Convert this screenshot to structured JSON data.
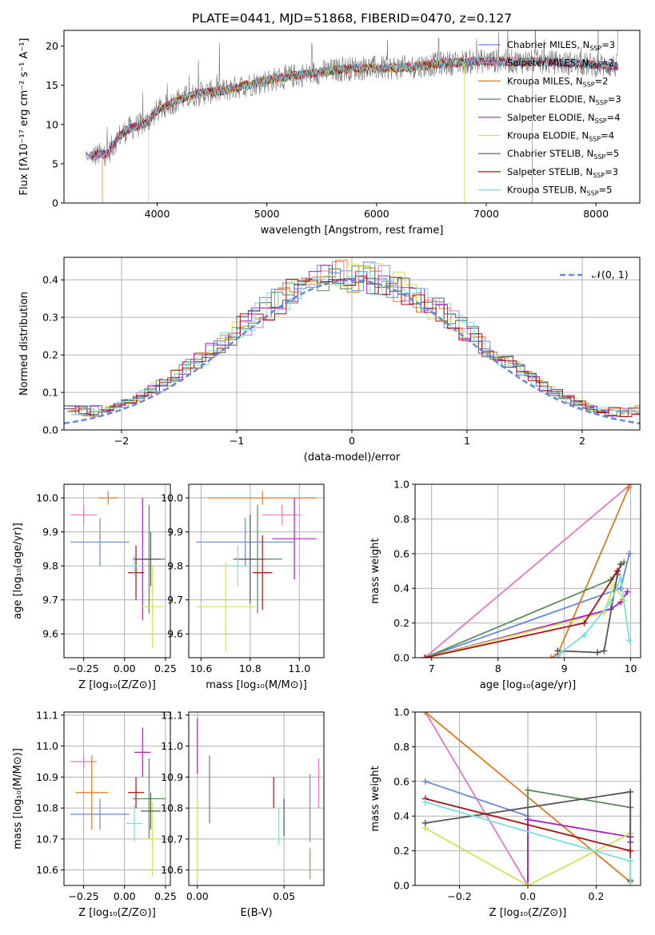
{
  "figure_title": "PLATE=0441, MJD=51868, FIBERID=0470, z=0.127",
  "colors": {
    "chabrier_miles": "#6688dd",
    "salpeter_miles": "#e377c2",
    "kroupa_miles": "#e07820",
    "chabrier_elodie": "#5a8a5a",
    "salpeter_elodie": "#aa22bb",
    "kroupa_elodie": "#d4e157",
    "chabrier_stelib": "#555555",
    "salpeter_stelib": "#aa1111",
    "kroupa_stelib": "#7ddde0",
    "normal_curve": "#6688dd",
    "observed_spectrum": "#777777"
  },
  "chart_data": [
    {
      "id": "spectrum",
      "type": "line",
      "xlabel": "wavelength [Angstrom, rest frame]",
      "ylabel": "Flux [fλ10⁻¹⁷ erg cm⁻² s⁻¹ A⁻¹]",
      "xlim": [
        3150,
        8400
      ],
      "ylim": [
        0,
        22
      ],
      "xticks": [
        "4000",
        "5000",
        "6000",
        "7000",
        "8000"
      ],
      "yticks": [
        "0",
        "5",
        "10",
        "15",
        "20"
      ],
      "grid": false,
      "legend_position": "right",
      "legend": [
        "Chabrier MILES, N_SSP=3",
        "Salpeter MILES, N_SSP=2",
        "Kroupa MILES, N_SSP=2",
        "Chabrier ELODIE, N_SSP=3",
        "Salpeter ELODIE, N_SSP=4",
        "Kroupa ELODIE, N_SSP=4",
        "Chabrier STELIB, N_SSP=5",
        "Salpeter STELIB, N_SSP=3",
        "Kroupa STELIB, N_SSP=5"
      ],
      "continuum_anchors": [
        [
          3400,
          6
        ],
        [
          3550,
          6.3
        ],
        [
          3650,
          8.5
        ],
        [
          3750,
          9.5
        ],
        [
          3900,
          10.2
        ],
        [
          4000,
          11.8
        ],
        [
          4200,
          13.2
        ],
        [
          4400,
          14.0
        ],
        [
          4600,
          14.3
        ],
        [
          4800,
          15.0
        ],
        [
          5000,
          15.6
        ],
        [
          5200,
          16.1
        ],
        [
          5500,
          16.7
        ],
        [
          5800,
          17.2
        ],
        [
          6000,
          17.2
        ],
        [
          6300,
          17.3
        ],
        [
          6600,
          17.8
        ],
        [
          7000,
          18.1
        ],
        [
          7500,
          18.0
        ],
        [
          8000,
          17.6
        ],
        [
          8200,
          17.4
        ]
      ],
      "model_ranges": [
        [
          3350,
          8200
        ],
        [
          3350,
          7400
        ],
        [
          3500,
          7420
        ],
        [
          3400,
          8200
        ],
        [
          3400,
          8200
        ],
        [
          3920,
          6800
        ],
        [
          3350,
          8200
        ],
        [
          3400,
          8200
        ],
        [
          3350,
          8200
        ]
      ]
    },
    {
      "id": "residuals",
      "type": "line",
      "xlabel": "(data-model)/error",
      "ylabel": "Normed distribution",
      "xlim": [
        -2.5,
        2.5
      ],
      "ylim": [
        0,
        0.46
      ],
      "xticks": [
        "−2",
        "−1",
        "0",
        "1",
        "2"
      ],
      "yticks": [
        "0.0",
        "0.1",
        "0.2",
        "0.3",
        "0.4"
      ],
      "grid": true,
      "legend_position": "top-right",
      "legend": [
        "𝒩(0, 1)"
      ],
      "normal_mu": 0,
      "normal_sigma": 1,
      "bin_width": 0.1
    },
    {
      "id": "age-vs-Z",
      "type": "scatter",
      "xlabel": "Z [log₁₀(Z/Z⊙)]",
      "ylabel": "age  [log₁₀(age/yr)]",
      "xlim": [
        -0.37,
        0.28
      ],
      "ylim": [
        9.53,
        10.04
      ],
      "xticks": [
        "−0.25",
        "0.00",
        "0.25"
      ],
      "yticks": [
        "9.6",
        "9.7",
        "9.8",
        "9.9",
        "10.0"
      ],
      "grid": true,
      "points": [
        {
          "x": -0.15,
          "xerr": 0.18,
          "y": 9.87,
          "yerr": 0.07
        },
        {
          "x": -0.25,
          "xerr": 0.08,
          "y": 9.95,
          "yerr": 0.03
        },
        {
          "x": -0.1,
          "xerr": 0.06,
          "y": 10.0,
          "yerr": 0.02
        },
        {
          "x": 0.15,
          "xerr": 0.1,
          "y": 9.82,
          "yerr": 0.16
        },
        {
          "x": 0.11,
          "xerr": 0.05,
          "y": 9.82,
          "yerr": 0.18
        },
        {
          "x": 0.17,
          "xerr": 0.07,
          "y": 9.68,
          "yerr": 0.12
        },
        {
          "x": 0.16,
          "xerr": 0.06,
          "y": 9.82,
          "yerr": 0.08
        },
        {
          "x": 0.07,
          "xerr": 0.05,
          "y": 9.78,
          "yerr": 0.08
        },
        {
          "x": 0.06,
          "xerr": 0.05,
          "y": 9.8,
          "yerr": 0.03
        }
      ]
    },
    {
      "id": "age-vs-mass",
      "type": "scatter",
      "xlabel": "mass [log₁₀(M/M⊙)]",
      "ylabel": "",
      "xlim": [
        10.55,
        11.1
      ],
      "ylim": [
        9.53,
        10.04
      ],
      "xticks": [
        "10.6",
        "10.8",
        "11.0"
      ],
      "yticks": [
        "9.6",
        "9.7",
        "9.8",
        "9.9",
        "10.0"
      ],
      "grid": true,
      "points": [
        {
          "x": 10.78,
          "xerr": 0.2,
          "y": 9.87,
          "yerr": 0.07
        },
        {
          "x": 10.93,
          "xerr": 0.08,
          "y": 9.95,
          "yerr": 0.03
        },
        {
          "x": 10.85,
          "xerr": 0.22,
          "y": 10.0,
          "yerr": 0.02
        },
        {
          "x": 10.83,
          "xerr": 0.1,
          "y": 9.82,
          "yerr": 0.16
        },
        {
          "x": 10.98,
          "xerr": 0.09,
          "y": 9.88,
          "yerr": 0.12
        },
        {
          "x": 10.7,
          "xerr": 0.12,
          "y": 9.68,
          "yerr": 0.13
        },
        {
          "x": 10.8,
          "xerr": 0.06,
          "y": 9.82,
          "yerr": 0.13
        },
        {
          "x": 10.85,
          "xerr": 0.04,
          "y": 9.78,
          "yerr": 0.11
        },
        {
          "x": 10.75,
          "xerr": 0.05,
          "y": 9.8,
          "yerr": 0.06
        }
      ]
    },
    {
      "id": "mass-weight-vs-age",
      "type": "line",
      "xlabel": "age  [log₁₀(age/yr)]",
      "ylabel": "mass weight",
      "xlim": [
        6.75,
        10.15
      ],
      "ylim": [
        0,
        1.0
      ],
      "xticks": [
        "7",
        "8",
        "9",
        "10"
      ],
      "yticks": [
        "0.0",
        "0.2",
        "0.4",
        "0.6",
        "0.8",
        "1.0"
      ],
      "grid": true,
      "series": [
        {
          "points": [
            [
              6.9,
              0.0
            ],
            [
              9.85,
              0.4
            ],
            [
              9.98,
              0.6
            ]
          ]
        },
        {
          "points": [
            [
              6.9,
              0.0
            ],
            [
              10.0,
              1.0
            ]
          ]
        },
        {
          "points": [
            [
              8.8,
              0.0
            ],
            [
              8.9,
              0.02
            ],
            [
              9.97,
              0.98
            ]
          ]
        },
        {
          "points": [
            [
              6.9,
              0.0
            ],
            [
              9.7,
              0.45
            ],
            [
              9.9,
              0.55
            ]
          ]
        },
        {
          "points": [
            [
              6.9,
              0.0
            ],
            [
              9.7,
              0.28
            ],
            [
              9.85,
              0.32
            ],
            [
              9.95,
              0.38
            ]
          ]
        },
        {
          "points": [
            [
              6.9,
              0.0
            ],
            [
              9.6,
              0.26
            ],
            [
              9.75,
              0.42
            ],
            [
              9.9,
              0.33
            ]
          ]
        },
        {
          "points": [
            [
              8.9,
              0.0
            ],
            [
              8.9,
              0.04
            ],
            [
              9.5,
              0.03
            ],
            [
              9.6,
              0.04
            ],
            [
              9.8,
              0.48
            ],
            [
              9.85,
              0.54
            ]
          ]
        },
        {
          "points": [
            [
              6.9,
              0.0
            ],
            [
              9.3,
              0.2
            ],
            [
              9.8,
              0.5
            ]
          ]
        },
        {
          "points": [
            [
              8.9,
              0.0
            ],
            [
              8.95,
              0.03
            ],
            [
              9.3,
              0.13
            ],
            [
              9.7,
              0.32
            ],
            [
              9.85,
              0.46
            ],
            [
              9.98,
              0.1
            ]
          ]
        }
      ]
    },
    {
      "id": "mass-vs-Z",
      "type": "scatter",
      "xlabel": "Z [log₁₀(Z/Z⊙)]",
      "ylabel": "mass [log₁₀(M/M⊙)]",
      "xlim": [
        -0.37,
        0.28
      ],
      "ylim": [
        10.55,
        11.11
      ],
      "xticks": [
        "−0.25",
        "0.00",
        "0.25"
      ],
      "yticks": [
        "10.6",
        "10.7",
        "10.8",
        "10.9",
        "11.0",
        "11.1"
      ],
      "grid": true,
      "points": [
        {
          "x": -0.15,
          "xerr": 0.18,
          "y": 10.78,
          "yerr": 0.05
        },
        {
          "x": -0.25,
          "xerr": 0.08,
          "y": 10.95,
          "yerr": 0.02
        },
        {
          "x": -0.2,
          "xerr": 0.1,
          "y": 10.85,
          "yerr": 0.12
        },
        {
          "x": 0.15,
          "xerr": 0.1,
          "y": 10.83,
          "yerr": 0.13
        },
        {
          "x": 0.11,
          "xerr": 0.05,
          "y": 10.98,
          "yerr": 0.08
        },
        {
          "x": 0.17,
          "xerr": 0.07,
          "y": 10.7,
          "yerr": 0.12
        },
        {
          "x": 0.16,
          "xerr": 0.06,
          "y": 10.79,
          "yerr": 0.06
        },
        {
          "x": 0.07,
          "xerr": 0.05,
          "y": 10.85,
          "yerr": 0.05
        },
        {
          "x": 0.06,
          "xerr": 0.05,
          "y": 10.75,
          "yerr": 0.06
        }
      ]
    },
    {
      "id": "mass-vs-ebv",
      "type": "scatter",
      "xlabel": "E(B-V)",
      "ylabel": "",
      "xlim": [
        -0.005,
        0.073
      ],
      "ylim": [
        10.55,
        11.11
      ],
      "xticks": [
        "0.00",
        "0.05"
      ],
      "yticks": [
        "10.6",
        "10.7",
        "10.8",
        "10.9",
        "11.0",
        "11.1"
      ],
      "grid": true,
      "points": [
        {
          "x": 0.065,
          "xerr": 0,
          "y": 10.8,
          "yerr": 0.11
        },
        {
          "x": 0.07,
          "xerr": 0,
          "y": 10.88,
          "yerr": 0.08
        },
        {
          "x": 0.065,
          "xerr": 0,
          "y": 10.62,
          "yerr": 0.05
        },
        {
          "x": 0.007,
          "xerr": 0,
          "y": 10.86,
          "yerr": 0.11
        },
        {
          "x": 0.0,
          "xerr": 0,
          "y": 11.0,
          "yerr": 0.09
        },
        {
          "x": 0.0,
          "xerr": 0,
          "y": 10.7,
          "yerr": 0.13
        },
        {
          "x": 0.05,
          "xerr": 0,
          "y": 10.77,
          "yerr": 0.06
        },
        {
          "x": 0.044,
          "xerr": 0,
          "y": 10.85,
          "yerr": 0.05
        },
        {
          "x": 0.047,
          "xerr": 0,
          "y": 10.74,
          "yerr": 0.06
        }
      ]
    },
    {
      "id": "mass-weight-vs-Z",
      "type": "line",
      "xlabel": "Z [log₁₀(Z/Z⊙)]",
      "ylabel": "mass weight",
      "xlim": [
        -0.33,
        0.33
      ],
      "ylim": [
        0,
        1.0
      ],
      "xticks": [
        "−0.2",
        "0.0",
        "0.2"
      ],
      "yticks": [
        "0.0",
        "0.2",
        "0.4",
        "0.6",
        "0.8",
        "1.0"
      ],
      "grid": true,
      "series": [
        {
          "points": [
            [
              -0.3,
              0.6
            ],
            [
              0.0,
              0.4
            ],
            [
              0.0,
              0.0
            ]
          ]
        },
        {
          "points": [
            [
              -0.3,
              1.0
            ],
            [
              0.0,
              0.0
            ]
          ]
        },
        {
          "points": [
            [
              -0.3,
              1.0
            ],
            [
              0.3,
              0.02
            ]
          ]
        },
        {
          "points": [
            [
              0.0,
              0.0
            ],
            [
              0.0,
              0.55
            ],
            [
              0.3,
              0.45
            ],
            [
              0.3,
              0.3
            ]
          ]
        },
        {
          "points": [
            [
              0.0,
              0.0
            ],
            [
              0.0,
              0.38
            ],
            [
              0.3,
              0.28
            ],
            [
              0.3,
              0.25
            ]
          ]
        },
        {
          "points": [
            [
              -0.3,
              0.33
            ],
            [
              0.0,
              0.0
            ],
            [
              0.3,
              0.3
            ]
          ]
        },
        {
          "points": [
            [
              -0.3,
              0.36
            ],
            [
              0.3,
              0.54
            ],
            [
              0.3,
              0.03
            ]
          ]
        },
        {
          "points": [
            [
              -0.3,
              0.5
            ],
            [
              0.3,
              0.2
            ]
          ]
        },
        {
          "points": [
            [
              -0.3,
              0.48
            ],
            [
              0.3,
              0.14
            ],
            [
              0.3,
              0.0
            ]
          ]
        }
      ]
    }
  ]
}
